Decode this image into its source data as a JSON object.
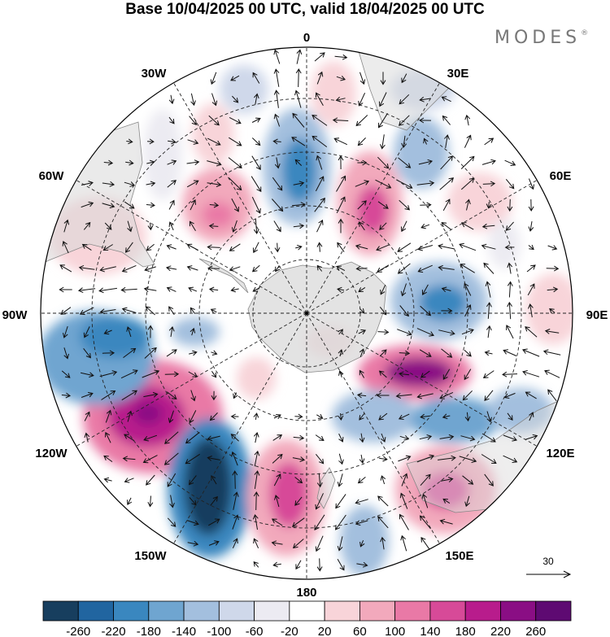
{
  "title": "Base 10/04/2025 00 UTC, valid 18/04/2025 00 UTC",
  "brand": "MODES",
  "brand_mark": "®",
  "longitude_labels": {
    "lon_0": "0",
    "lon_30e": "30E",
    "lon_60e": "60E",
    "lon_90e": "90E",
    "lon_120e": "120E",
    "lon_150e": "150E",
    "lon_180": "180",
    "lon_150w": "150W",
    "lon_120w": "120W",
    "lon_90w": "90W",
    "lon_60w": "60W",
    "lon_30w": "30W"
  },
  "reference_vector": "30",
  "colorbar": {
    "colors": [
      "#173e5e",
      "#2165a0",
      "#3a87bf",
      "#6fa5d0",
      "#a3bfde",
      "#cfd8ea",
      "#ecebf2",
      "#ffffff",
      "#f8d4d9",
      "#f2a9bc",
      "#e979a6",
      "#d74a98",
      "#b81c8c",
      "#8a0e84",
      "#5e0a72"
    ],
    "tick_labels": [
      "-260",
      "-220",
      "-180",
      "-140",
      "-100",
      "-60",
      "-20",
      "20",
      "60",
      "100",
      "140",
      "180",
      "220",
      "260"
    ]
  }
}
